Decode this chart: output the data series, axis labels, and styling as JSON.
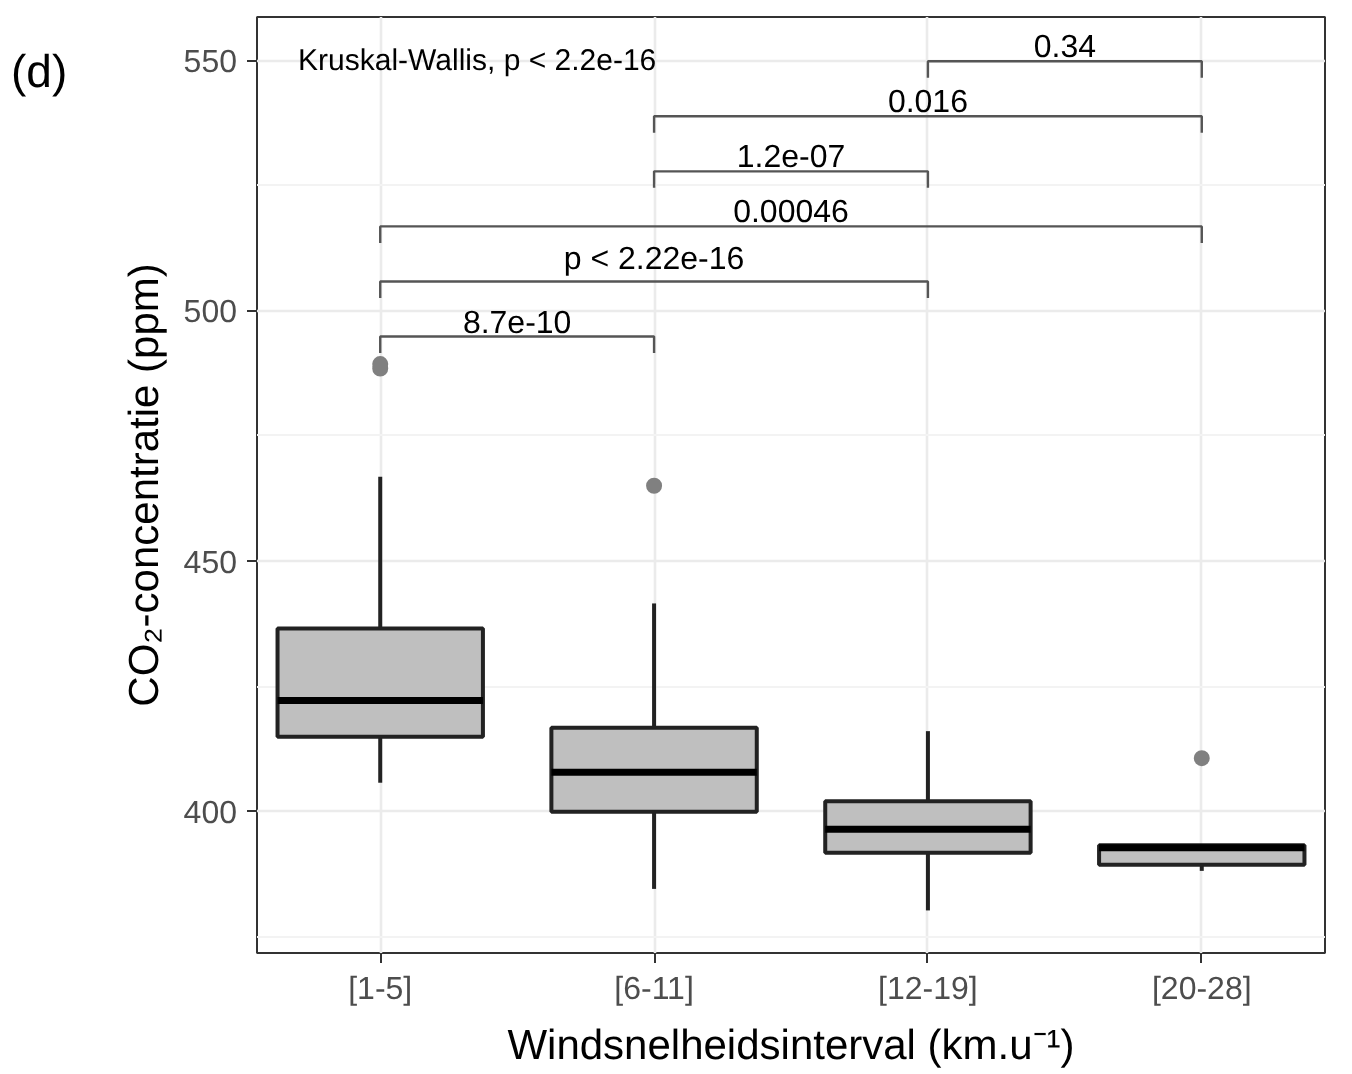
{
  "chart_data": {
    "type": "box",
    "xlabel": "Windsnelheidsinterval (km.u⁻¹)",
    "ylabel": "CO₂-concentratie (ppm)",
    "categories": [
      "[1-5]",
      "[6-11]",
      "[12-19]",
      "[20-28]"
    ],
    "color": "#bfbfbf",
    "boxes": [
      {
        "low": 405.7,
        "q1": 414.9,
        "median": 422.1,
        "q3": 436.5,
        "high": 466.8,
        "outliers": [
          489.3,
          488.4
        ]
      },
      {
        "low": 384.5,
        "q1": 399.9,
        "median": 407.8,
        "q3": 416.7,
        "high": 441.5,
        "outliers": [
          465
        ]
      },
      {
        "low": 380.2,
        "q1": 391.7,
        "median": 396.4,
        "q3": 402,
        "high": 416
      },
      {
        "low": 388.1,
        "q1": 389.3,
        "median": 392.7,
        "q3": 393.2,
        "high": 393.2,
        "outliers": [
          410.6
        ]
      }
    ],
    "ylim": [
      371.7,
      558.6
    ],
    "yticks": [
      400,
      450,
      500,
      550
    ],
    "grid": true,
    "annotations": [
      "(d)",
      "Kruskal-Wallis, p < 2.2e-16",
      "8.7e-10",
      "p < 2.22e-16",
      "0.00046",
      "1.2e-07",
      "0.016",
      "0.34"
    ]
  }
}
